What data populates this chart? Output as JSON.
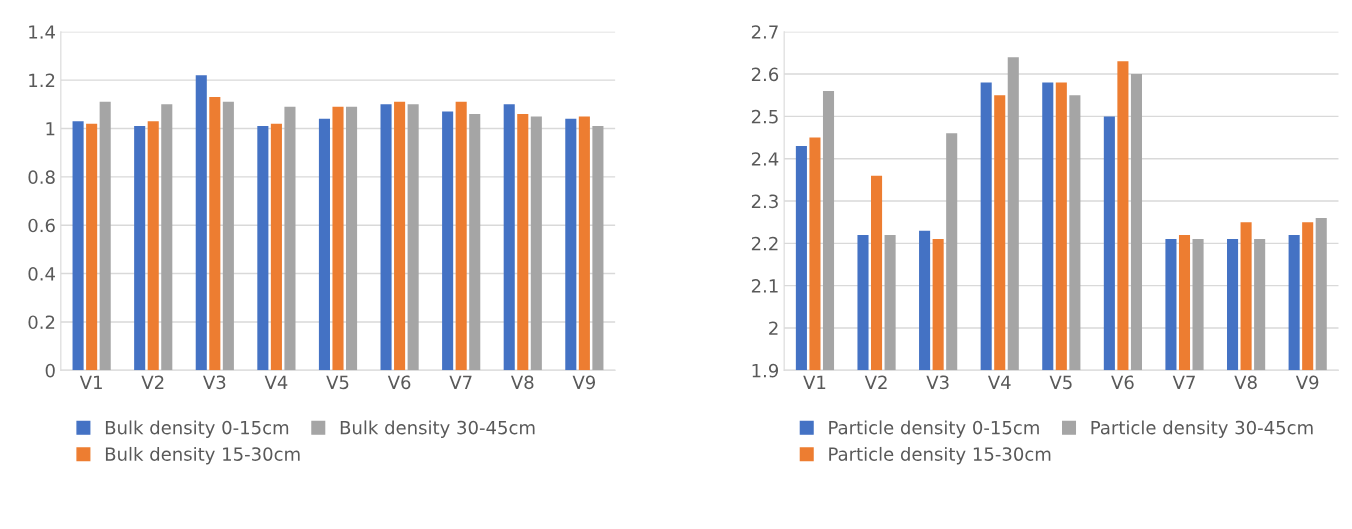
{
  "chart_data": [
    {
      "type": "bar",
      "categories": [
        "V1",
        "V2",
        "V3",
        "V4",
        "V5",
        "V6",
        "V7",
        "V8",
        "V9"
      ],
      "series": [
        {
          "name": "Bulk density 0-15cm",
          "color": "#4472c4",
          "values": [
            1.03,
            1.01,
            1.22,
            1.01,
            1.04,
            1.1,
            1.07,
            1.1,
            1.04
          ]
        },
        {
          "name": "Bulk density 15-30cm",
          "color": "#ed7d31",
          "values": [
            1.02,
            1.03,
            1.13,
            1.02,
            1.09,
            1.11,
            1.11,
            1.06,
            1.05
          ]
        },
        {
          "name": "Bulk density 30-45cm",
          "color": "#a5a5a5",
          "values": [
            1.11,
            1.1,
            1.11,
            1.09,
            1.09,
            1.1,
            1.06,
            1.05,
            1.01
          ]
        }
      ],
      "ylim": [
        0,
        1.4
      ],
      "yticks": [
        0,
        0.2,
        0.4,
        0.6,
        0.8,
        1,
        1.2,
        1.4
      ],
      "grid": "y",
      "legend": "bottom"
    },
    {
      "type": "bar",
      "categories": [
        "V1",
        "V2",
        "V3",
        "V4",
        "V5",
        "V6",
        "V7",
        "V8",
        "V9"
      ],
      "series": [
        {
          "name": "Particle density 0-15cm",
          "color": "#4472c4",
          "values": [
            2.43,
            2.22,
            2.23,
            2.58,
            2.58,
            2.5,
            2.21,
            2.21,
            2.22
          ]
        },
        {
          "name": "Particle density 15-30cm",
          "color": "#ed7d31",
          "values": [
            2.45,
            2.36,
            2.21,
            2.55,
            2.58,
            2.63,
            2.22,
            2.25,
            2.25
          ]
        },
        {
          "name": "Particle density 30-45cm",
          "color": "#a5a5a5",
          "values": [
            2.56,
            2.22,
            2.46,
            2.64,
            2.55,
            2.6,
            2.21,
            2.21,
            2.26
          ]
        }
      ],
      "ylim": [
        1.9,
        2.7
      ],
      "yticks": [
        1.9,
        2,
        2.1,
        2.2,
        2.3,
        2.4,
        2.5,
        2.6,
        2.7
      ],
      "grid": "y",
      "legend": "bottom"
    }
  ]
}
